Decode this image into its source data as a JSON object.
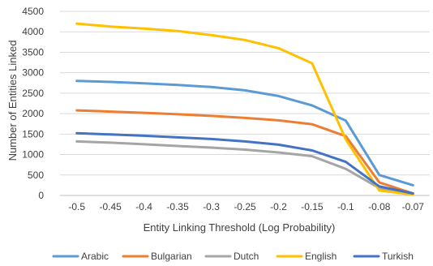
{
  "chart_data": {
    "type": "line",
    "title": "",
    "xlabel": "Entity Linking Threshold (Log Probability)",
    "ylabel": "Number of Entities Linked",
    "categories": [
      "-0.5",
      "-0.45",
      "-0.4",
      "-0.35",
      "-0.3",
      "-0.25",
      "-0.2",
      "-0.15",
      "-0.1",
      "-0.08",
      "-0.07"
    ],
    "ylim": [
      0,
      4500
    ],
    "yticks": [
      "0",
      "500",
      "1000",
      "1500",
      "2000",
      "2500",
      "3000",
      "3500",
      "4000",
      "4500"
    ],
    "grid": true,
    "legend_position": "bottom",
    "series": [
      {
        "name": "Arabic",
        "color": "#5B9BD5",
        "values": [
          2800,
          2775,
          2740,
          2700,
          2650,
          2570,
          2430,
          2200,
          1830,
          500,
          250
        ]
      },
      {
        "name": "Bulgarian",
        "color": "#ED7D31",
        "values": [
          2080,
          2050,
          2020,
          1985,
          1945,
          1895,
          1835,
          1740,
          1450,
          320,
          50
        ]
      },
      {
        "name": "Dutch",
        "color": "#A5A5A5",
        "values": [
          1320,
          1290,
          1250,
          1210,
          1170,
          1120,
          1050,
          960,
          650,
          180,
          30
        ]
      },
      {
        "name": "English",
        "color": "#FFC000",
        "values": [
          4200,
          4130,
          4080,
          4020,
          3920,
          3800,
          3600,
          3230,
          1370,
          120,
          20
        ]
      },
      {
        "name": "Turkish",
        "color": "#4472C4",
        "values": [
          1520,
          1490,
          1460,
          1420,
          1380,
          1320,
          1240,
          1100,
          820,
          220,
          50
        ]
      }
    ]
  }
}
